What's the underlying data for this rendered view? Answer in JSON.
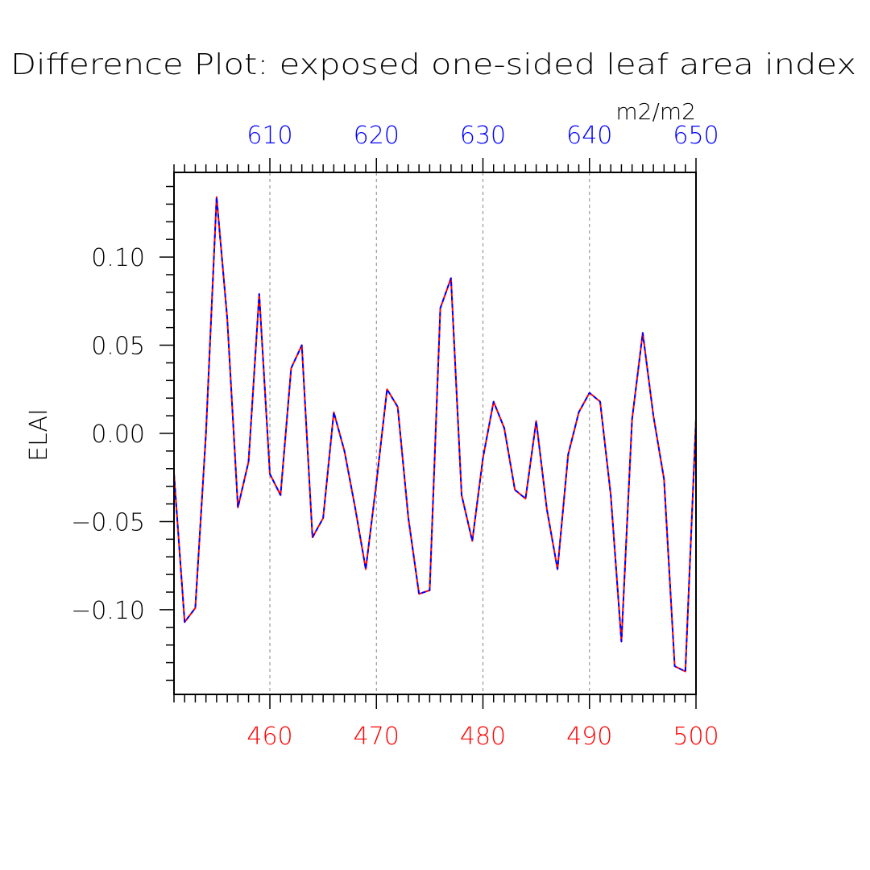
{
  "chart_data": {
    "type": "line",
    "title": "Difference Plot: exposed one-sided leaf area index",
    "units_label": "m2/m2",
    "ylabel": "ELAI",
    "xlim_bottom": [
      451,
      500
    ],
    "xlim_top": [
      601,
      650
    ],
    "ylim": [
      -0.148,
      0.148
    ],
    "x_bottom_ticks": [
      460,
      470,
      480,
      490,
      500
    ],
    "x_top_ticks": [
      610,
      620,
      630,
      640,
      650
    ],
    "y_ticks": [
      0.1,
      0.05,
      0.0,
      -0.05,
      -0.1
    ],
    "y_tick_labels": [
      "0.10",
      "0.05",
      "0.00",
      "−0.05",
      "−0.10"
    ],
    "grid": "vertical dashed at major x ticks",
    "x": [
      451,
      452,
      453,
      454,
      455,
      456,
      457,
      458,
      459,
      460,
      461,
      462,
      463,
      464,
      465,
      466,
      467,
      468,
      469,
      470,
      471,
      472,
      473,
      474,
      475,
      476,
      477,
      478,
      479,
      480,
      481,
      482,
      483,
      484,
      485,
      486,
      487,
      488,
      489,
      490,
      491,
      492,
      493,
      494,
      495,
      496,
      497,
      498,
      499,
      500
    ],
    "series": [
      {
        "color": "#ff0000",
        "style": "solid",
        "values": [
          -0.023,
          -0.107,
          -0.099,
          0.0,
          0.134,
          0.065,
          -0.042,
          -0.016,
          0.079,
          -0.023,
          -0.035,
          0.037,
          0.05,
          -0.059,
          -0.048,
          0.012,
          -0.01,
          -0.042,
          -0.077,
          -0.028,
          0.025,
          0.015,
          -0.048,
          -0.091,
          -0.089,
          0.071,
          0.088,
          -0.035,
          -0.061,
          -0.014,
          0.018,
          0.003,
          -0.032,
          -0.037,
          0.007,
          -0.043,
          -0.077,
          -0.012,
          0.012,
          0.023,
          0.018,
          -0.035,
          -0.118,
          0.008,
          0.057,
          0.01,
          -0.026,
          -0.132,
          -0.135,
          0.008
        ]
      },
      {
        "color": "#0000ff",
        "style": "dashed",
        "values": [
          -0.023,
          -0.107,
          -0.099,
          0.0,
          0.134,
          0.065,
          -0.042,
          -0.016,
          0.079,
          -0.023,
          -0.035,
          0.037,
          0.05,
          -0.059,
          -0.048,
          0.012,
          -0.01,
          -0.042,
          -0.077,
          -0.028,
          0.025,
          0.015,
          -0.048,
          -0.091,
          -0.089,
          0.071,
          0.088,
          -0.035,
          -0.061,
          -0.014,
          0.018,
          0.003,
          -0.032,
          -0.037,
          0.007,
          -0.043,
          -0.077,
          -0.012,
          0.012,
          0.023,
          0.018,
          -0.035,
          -0.118,
          0.008,
          0.057,
          0.01,
          -0.026,
          -0.132,
          -0.135,
          0.008
        ]
      }
    ],
    "colors": {
      "bottom_axis": "#ff0000",
      "top_axis": "#0000ff",
      "frame": "#000000",
      "grid": "#888888"
    }
  }
}
